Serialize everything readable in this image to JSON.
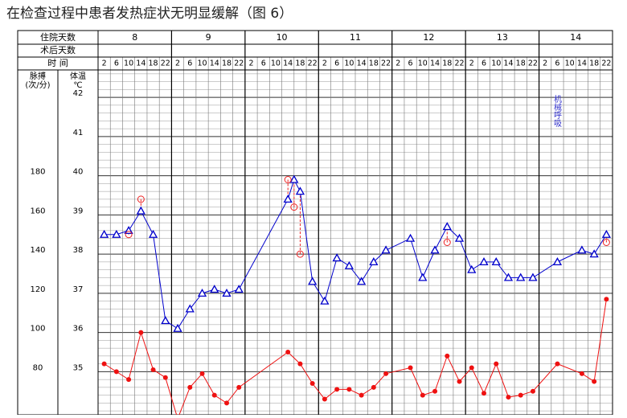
{
  "title": "在检查过程中患者发热症状无明显缓解（图 6）",
  "chart_data": {
    "type": "line",
    "row_labels": {
      "admission_days": "住院天数",
      "postop_days": "术后天数",
      "time": "时 间"
    },
    "pulse_label": [
      "脉搏",
      "(次/分)"
    ],
    "temp_label": [
      "体温",
      "℃"
    ],
    "days": [
      "8",
      "9",
      "10",
      "11",
      "12",
      "13",
      "14"
    ],
    "xlim": [
      0,
      168
    ],
    "xticks": [
      {
        "value": 2,
        "label": "2"
      },
      {
        "value": 6,
        "label": "6"
      },
      {
        "value": 10,
        "label": "10"
      },
      {
        "value": 14,
        "label": "14"
      },
      {
        "value": 18,
        "label": "18"
      },
      {
        "value": 22,
        "label": "22"
      },
      {
        "value": 26,
        "label": "2"
      },
      {
        "value": 30,
        "label": "6"
      },
      {
        "value": 34,
        "label": "10"
      },
      {
        "value": 38,
        "label": "14"
      },
      {
        "value": 42,
        "label": "18"
      },
      {
        "value": 46,
        "label": "22"
      },
      {
        "value": 50,
        "label": "2"
      },
      {
        "value": 54,
        "label": "6"
      },
      {
        "value": 58,
        "label": "10"
      },
      {
        "value": 62,
        "label": "14"
      },
      {
        "value": 66,
        "label": "18"
      },
      {
        "value": 70,
        "label": "22"
      },
      {
        "value": 74,
        "label": "2"
      },
      {
        "value": 78,
        "label": "6"
      },
      {
        "value": 82,
        "label": "10"
      },
      {
        "value": 86,
        "label": "14"
      },
      {
        "value": 90,
        "label": "18"
      },
      {
        "value": 94,
        "label": "22"
      },
      {
        "value": 98,
        "label": "2"
      },
      {
        "value": 102,
        "label": "6"
      },
      {
        "value": 106,
        "label": "10"
      },
      {
        "value": 110,
        "label": "14"
      },
      {
        "value": 114,
        "label": "18"
      },
      {
        "value": 118,
        "label": "22"
      },
      {
        "value": 122,
        "label": "2"
      },
      {
        "value": 126,
        "label": "6"
      },
      {
        "value": 130,
        "label": "10"
      },
      {
        "value": 134,
        "label": "14"
      },
      {
        "value": 138,
        "label": "18"
      },
      {
        "value": 142,
        "label": "22"
      },
      {
        "value": 146,
        "label": "2"
      },
      {
        "value": 150,
        "label": "6"
      },
      {
        "value": 154,
        "label": "10"
      },
      {
        "value": 158,
        "label": "14"
      },
      {
        "value": 162,
        "label": "18"
      },
      {
        "value": 166,
        "label": "22"
      }
    ],
    "ylim": [
      33.9,
      42.7
    ],
    "yticks": [
      35,
      36,
      37,
      38,
      39,
      40,
      41,
      42
    ],
    "y2lim": [
      58,
      234
    ],
    "y2ticks": [
      80,
      100,
      120,
      140,
      160,
      180
    ],
    "grid": true,
    "annotation": "机械呼吸",
    "series": [
      {
        "color": "#0000cc",
        "marker": "triangle",
        "line": true,
        "x": [
          2,
          6,
          10,
          14,
          18,
          22,
          26,
          30,
          34,
          38,
          42,
          46,
          62,
          64,
          66,
          70,
          74,
          78,
          82,
          86,
          90,
          94,
          102,
          106,
          110,
          114,
          118,
          122,
          126,
          130,
          134,
          138,
          142,
          150,
          158,
          162,
          166
        ],
        "values": [
          38.5,
          38.5,
          38.6,
          39.1,
          38.5,
          36.3,
          36.1,
          36.6,
          37.0,
          37.1,
          37.0,
          37.1,
          39.4,
          39.9,
          39.6,
          37.3,
          36.8,
          37.9,
          37.7,
          37.3,
          37.8,
          38.1,
          38.4,
          37.4,
          38.1,
          38.7,
          38.4,
          37.6,
          37.8,
          37.8,
          37.4,
          37.4,
          37.4,
          37.8,
          38.1,
          38.0,
          38.5
        ]
      },
      {
        "color": "#ee2222",
        "marker": "circle",
        "line": false,
        "x": [
          10,
          14,
          62,
          64,
          66,
          114,
          166
        ],
        "values": [
          38.5,
          39.4,
          39.9,
          39.2,
          38.0,
          38.3,
          38.3
        ]
      },
      {
        "color": "#ee1111",
        "marker": "dot",
        "line": true,
        "axis": "y2",
        "x": [
          2,
          6,
          10,
          14,
          18,
          22,
          26,
          30,
          34,
          38,
          42,
          46,
          62,
          66,
          70,
          74,
          78,
          82,
          86,
          90,
          94,
          102,
          106,
          110,
          114,
          118,
          122,
          126,
          130,
          134,
          138,
          142,
          150,
          158,
          162,
          166
        ],
        "values": [
          84,
          80,
          76,
          100,
          81,
          77,
          56,
          72,
          79,
          68,
          64,
          72,
          90,
          84,
          74,
          66,
          71,
          71,
          68,
          72,
          79,
          82,
          68,
          70,
          88,
          75,
          82,
          69,
          84,
          67,
          68,
          70,
          84,
          79,
          75,
          117
        ]
      }
    ]
  }
}
